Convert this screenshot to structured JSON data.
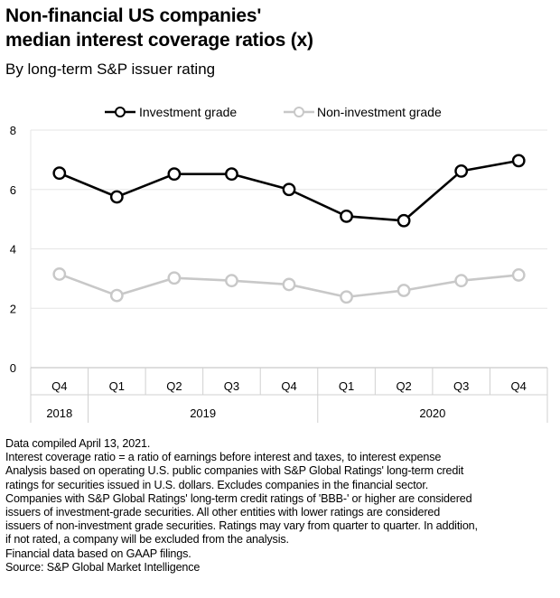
{
  "header": {
    "title_line1": "Non-financial US companies'",
    "title_line2": "median interest coverage ratios (x)",
    "subtitle": "By long-term S&P issuer rating"
  },
  "chart_data": {
    "type": "line",
    "x": [
      "Q4",
      "Q1",
      "Q2",
      "Q3",
      "Q4",
      "Q1",
      "Q2",
      "Q3",
      "Q4"
    ],
    "year_groups": [
      {
        "label": "2018",
        "span": 1
      },
      {
        "label": "2019",
        "span": 4
      },
      {
        "label": "2020",
        "span": 4
      }
    ],
    "series": [
      {
        "name": "Investment grade",
        "color": "#000000",
        "values": [
          6.55,
          5.75,
          6.52,
          6.52,
          6.0,
          5.1,
          4.95,
          6.62,
          6.97
        ]
      },
      {
        "name": "Non-investment grade",
        "color": "#c8c8c8",
        "values": [
          3.15,
          2.43,
          3.02,
          2.93,
          2.8,
          2.38,
          2.6,
          2.93,
          3.12
        ]
      }
    ],
    "ylim": [
      0,
      8
    ],
    "yticks": [
      "0",
      "2",
      "4",
      "6",
      "8"
    ],
    "grid": true,
    "legend_position": "top-center"
  },
  "notes": [
    "Data compiled April 13, 2021.",
    "Interest coverage ratio = a ratio of earnings before interest and taxes, to interest expense",
    "Analysis based on operating U.S. public companies with S&P Global Ratings' long-term credit",
    "ratings for securities issued in U.S. dollars. Excludes companies in the financial sector.",
    "Companies with S&P Global Ratings' long-term credit ratings of 'BBB-' or higher are considered",
    "issuers of investment-grade securities. All other entities with lower ratings are considered",
    "issuers of non-investment grade securities. Ratings may vary from quarter to quarter. In addition,",
    "if not rated, a company will be excluded from the analysis.",
    "Financial data based on GAAP filings.",
    "Source: S&P Global Market Intelligence"
  ]
}
